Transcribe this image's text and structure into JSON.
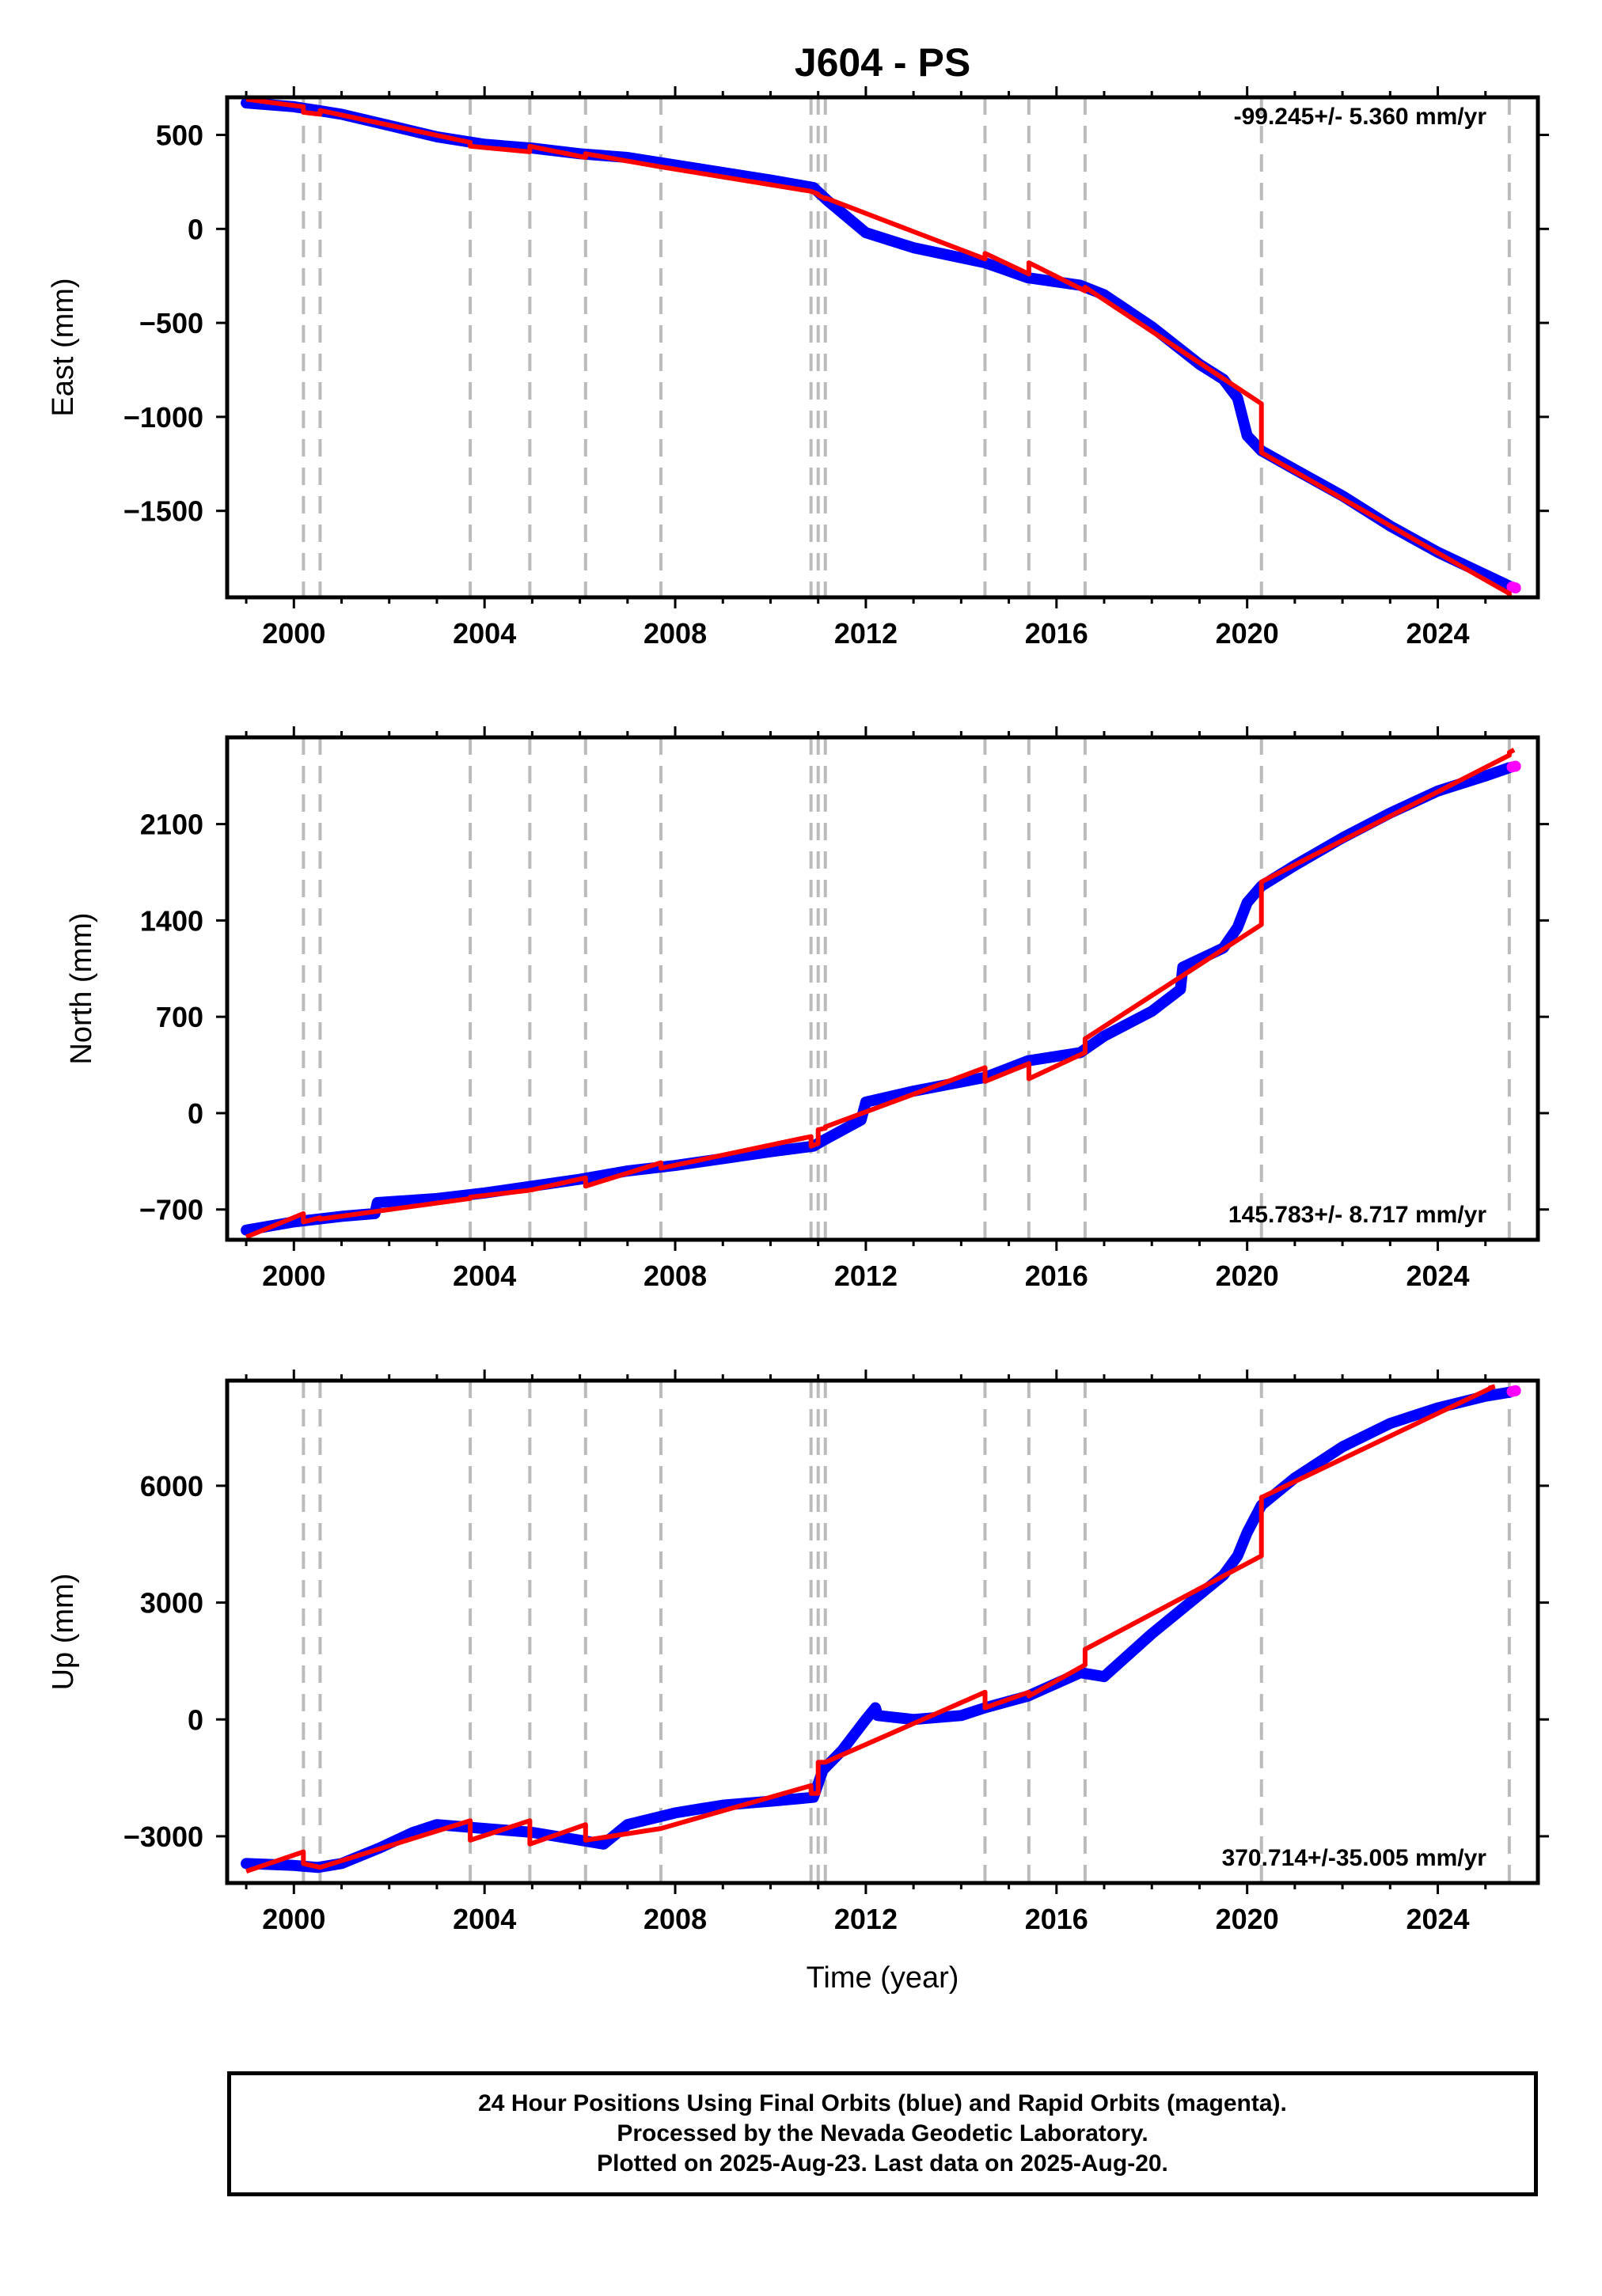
{
  "title": "J604 - PS",
  "xlabel": "Time (year)",
  "colors": {
    "final": "#0000ff",
    "rapid": "#ff00ff",
    "model": "#ff0000",
    "steps": "#bbbbbb"
  },
  "caption": [
    "24 Hour Positions Using Final Orbits (blue) and Rapid Orbits (magenta).",
    "Processed by the Nevada Geodetic Laboratory.",
    "Plotted on 2025-Aug-23. Last data on 2025-Aug-20."
  ],
  "chart_data": [
    {
      "type": "line",
      "ylabel": "East (mm)",
      "annotation": "-99.245+/- 5.360 mm/yr",
      "annotation_position": "top-right",
      "xlim": [
        1998.6,
        2026.1
      ],
      "ylim": [
        -1960,
        700
      ],
      "xticks": [
        2000,
        2004,
        2008,
        2012,
        2016,
        2020,
        2024
      ],
      "yticks": [
        500,
        0,
        -500,
        -1000,
        -1500
      ],
      "ytick_labels": [
        "500",
        "0",
        "−500",
        "−1000",
        "−1500"
      ],
      "grid": false,
      "steps": [
        2000.2,
        2000.55,
        2003.7,
        2004.95,
        2006.12,
        2007.7,
        2010.85,
        2011.0,
        2011.15,
        2014.5,
        2015.42,
        2016.6,
        2020.3,
        2025.5
      ],
      "series": [
        {
          "role": "final",
          "x": [
            1999.0,
            2000.0,
            2000.5,
            2001.0,
            2002.0,
            2003.0,
            2004.0,
            2005.0,
            2006.0,
            2007.0,
            2008.0,
            2009.0,
            2010.0,
            2010.9,
            2011.2,
            2012.0,
            2013.0,
            2014.5,
            2015.4,
            2016.5,
            2017.0,
            2018.0,
            2019.0,
            2019.5,
            2019.8,
            2020.0,
            2020.3,
            2021.0,
            2022.0,
            2023.0,
            2024.0,
            2025.0,
            2025.5
          ],
          "y": [
            670,
            650,
            630,
            610,
            550,
            490,
            450,
            430,
            400,
            380,
            340,
            300,
            260,
            220,
            150,
            -20,
            -100,
            -180,
            -260,
            -300,
            -350,
            -520,
            -720,
            -800,
            -900,
            -1100,
            -1180,
            -1280,
            -1420,
            -1580,
            -1720,
            -1840,
            -1900
          ]
        },
        {
          "role": "rapid",
          "x": [
            2025.56,
            2025.63
          ],
          "y": [
            -1905,
            -1910
          ]
        },
        {
          "role": "model",
          "x": [
            1999.0,
            2000.2,
            2000.2,
            2000.55,
            2000.55,
            2003.7,
            2003.7,
            2004.95,
            2004.95,
            2006.12,
            2006.12,
            2007.7,
            2007.7,
            2010.85,
            2010.85,
            2011.0,
            2011.0,
            2011.15,
            2011.15,
            2014.5,
            2014.5,
            2015.42,
            2015.42,
            2016.6,
            2016.6,
            2020.3,
            2020.3,
            2025.5,
            2025.5,
            2025.6
          ],
          "y": [
            690,
            650,
            620,
            610,
            630,
            460,
            440,
            410,
            440,
            380,
            400,
            330,
            330,
            200,
            200,
            185,
            180,
            160,
            165,
            -160,
            -130,
            -240,
            -180,
            -330,
            -310,
            -930,
            -1190,
            -1940,
            -1960,
            -1970
          ]
        }
      ]
    },
    {
      "type": "line",
      "ylabel": "North (mm)",
      "annotation": "145.783+/- 8.717 mm/yr",
      "annotation_position": "bottom-right",
      "xlim": [
        1998.6,
        2026.1
      ],
      "ylim": [
        -920,
        2730
      ],
      "xticks": [
        2000,
        2004,
        2008,
        2012,
        2016,
        2020,
        2024
      ],
      "yticks": [
        2100,
        1400,
        700,
        0,
        -700
      ],
      "ytick_labels": [
        "2100",
        "1400",
        "700",
        "0",
        "−700"
      ],
      "grid": false,
      "steps": [
        2000.2,
        2000.55,
        2003.7,
        2004.95,
        2006.12,
        2007.7,
        2010.85,
        2011.0,
        2011.15,
        2014.5,
        2015.42,
        2016.6,
        2020.3,
        2025.5
      ],
      "series": [
        {
          "role": "final",
          "x": [
            1999.0,
            2000.0,
            2001.0,
            2001.7,
            2001.75,
            2003.0,
            2004.0,
            2005.0,
            2006.0,
            2007.0,
            2008.0,
            2009.0,
            2010.0,
            2010.9,
            2011.1,
            2011.9,
            2012.0,
            2013.0,
            2014.5,
            2015.4,
            2016.5,
            2017.0,
            2018.0,
            2018.6,
            2018.65,
            2019.5,
            2019.8,
            2020.0,
            2020.3,
            2021.0,
            2022.0,
            2023.0,
            2024.0,
            2025.0,
            2025.5
          ],
          "y": [
            -850,
            -790,
            -750,
            -730,
            -650,
            -620,
            -580,
            -530,
            -480,
            -420,
            -380,
            -330,
            -280,
            -240,
            -200,
            -50,
            80,
            160,
            260,
            380,
            440,
            560,
            740,
            900,
            1060,
            1200,
            1350,
            1530,
            1650,
            1800,
            2000,
            2180,
            2340,
            2450,
            2510
          ]
        },
        {
          "role": "rapid",
          "x": [
            2025.56,
            2025.63
          ],
          "y": [
            2515,
            2520
          ]
        },
        {
          "role": "model",
          "x": [
            1999.0,
            2000.2,
            2000.2,
            2000.55,
            2000.55,
            2003.7,
            2003.7,
            2004.95,
            2004.95,
            2006.12,
            2006.12,
            2007.7,
            2007.7,
            2010.85,
            2010.85,
            2011.0,
            2011.0,
            2011.15,
            2011.15,
            2014.5,
            2014.5,
            2015.42,
            2015.42,
            2016.6,
            2016.6,
            2020.3,
            2020.3,
            2025.5,
            2025.5,
            2025.6
          ],
          "y": [
            -900,
            -730,
            -790,
            -760,
            -770,
            -620,
            -610,
            -560,
            -560,
            -470,
            -530,
            -360,
            -400,
            -170,
            -240,
            -220,
            -120,
            -110,
            -100,
            330,
            230,
            360,
            250,
            440,
            540,
            1370,
            1680,
            2600,
            2620,
            2640
          ]
        }
      ]
    },
    {
      "type": "line",
      "ylabel": "Up (mm)",
      "annotation": "370.714+/-35.005 mm/yr",
      "annotation_position": "bottom-right",
      "xlim": [
        1998.6,
        2026.1
      ],
      "ylim": [
        -4200,
        8700
      ],
      "xticks": [
        2000,
        2004,
        2008,
        2012,
        2016,
        2020,
        2024
      ],
      "yticks": [
        6000,
        3000,
        0,
        -3000
      ],
      "ytick_labels": [
        "6000",
        "3000",
        "0",
        "−3000"
      ],
      "grid": false,
      "steps": [
        2000.2,
        2000.55,
        2003.7,
        2004.95,
        2006.12,
        2007.7,
        2010.85,
        2011.0,
        2011.15,
        2014.5,
        2015.42,
        2016.6,
        2020.3,
        2025.5
      ],
      "series": [
        {
          "role": "final",
          "x": [
            1999.0,
            2000.0,
            2000.5,
            2001.0,
            2001.8,
            2002.5,
            2003.0,
            2004.0,
            2005.0,
            2006.0,
            2006.5,
            2007.0,
            2008.0,
            2009.0,
            2010.0,
            2010.9,
            2011.1,
            2011.5,
            2012.0,
            2012.2,
            2012.25,
            2013.0,
            2014.0,
            2014.5,
            2015.4,
            2016.5,
            2017.0,
            2018.0,
            2019.0,
            2019.5,
            2019.8,
            2020.0,
            2020.3,
            2021.0,
            2022.0,
            2023.0,
            2024.0,
            2025.0,
            2025.5
          ],
          "y": [
            -3700,
            -3750,
            -3800,
            -3700,
            -3300,
            -2900,
            -2700,
            -2800,
            -2900,
            -3100,
            -3200,
            -2700,
            -2400,
            -2200,
            -2100,
            -2000,
            -1300,
            -800,
            0,
            300,
            100,
            0,
            100,
            300,
            600,
            1200,
            1100,
            2200,
            3200,
            3700,
            4200,
            4800,
            5500,
            6200,
            7000,
            7600,
            8000,
            8300,
            8400
          ]
        },
        {
          "role": "rapid",
          "x": [
            2025.56,
            2025.63
          ],
          "y": [
            8420,
            8440
          ]
        },
        {
          "role": "model",
          "x": [
            1999.0,
            2000.2,
            2000.2,
            2000.55,
            2000.55,
            2003.7,
            2003.7,
            2004.95,
            2004.95,
            2006.12,
            2006.12,
            2007.7,
            2007.7,
            2010.85,
            2010.85,
            2011.0,
            2011.0,
            2011.15,
            2011.15,
            2014.5,
            2014.5,
            2015.42,
            2015.42,
            2016.6,
            2016.6,
            2020.3,
            2020.3,
            2025.1,
            2025.1,
            2025.2
          ],
          "y": [
            -3900,
            -3400,
            -3700,
            -3800,
            -3800,
            -2600,
            -3100,
            -2600,
            -3200,
            -2700,
            -3100,
            -2800,
            -2800,
            -1700,
            -1900,
            -1900,
            -1100,
            -1100,
            -1100,
            700,
            300,
            700,
            600,
            1400,
            1800,
            4200,
            5700,
            8500,
            8520,
            8550
          ]
        }
      ]
    }
  ]
}
